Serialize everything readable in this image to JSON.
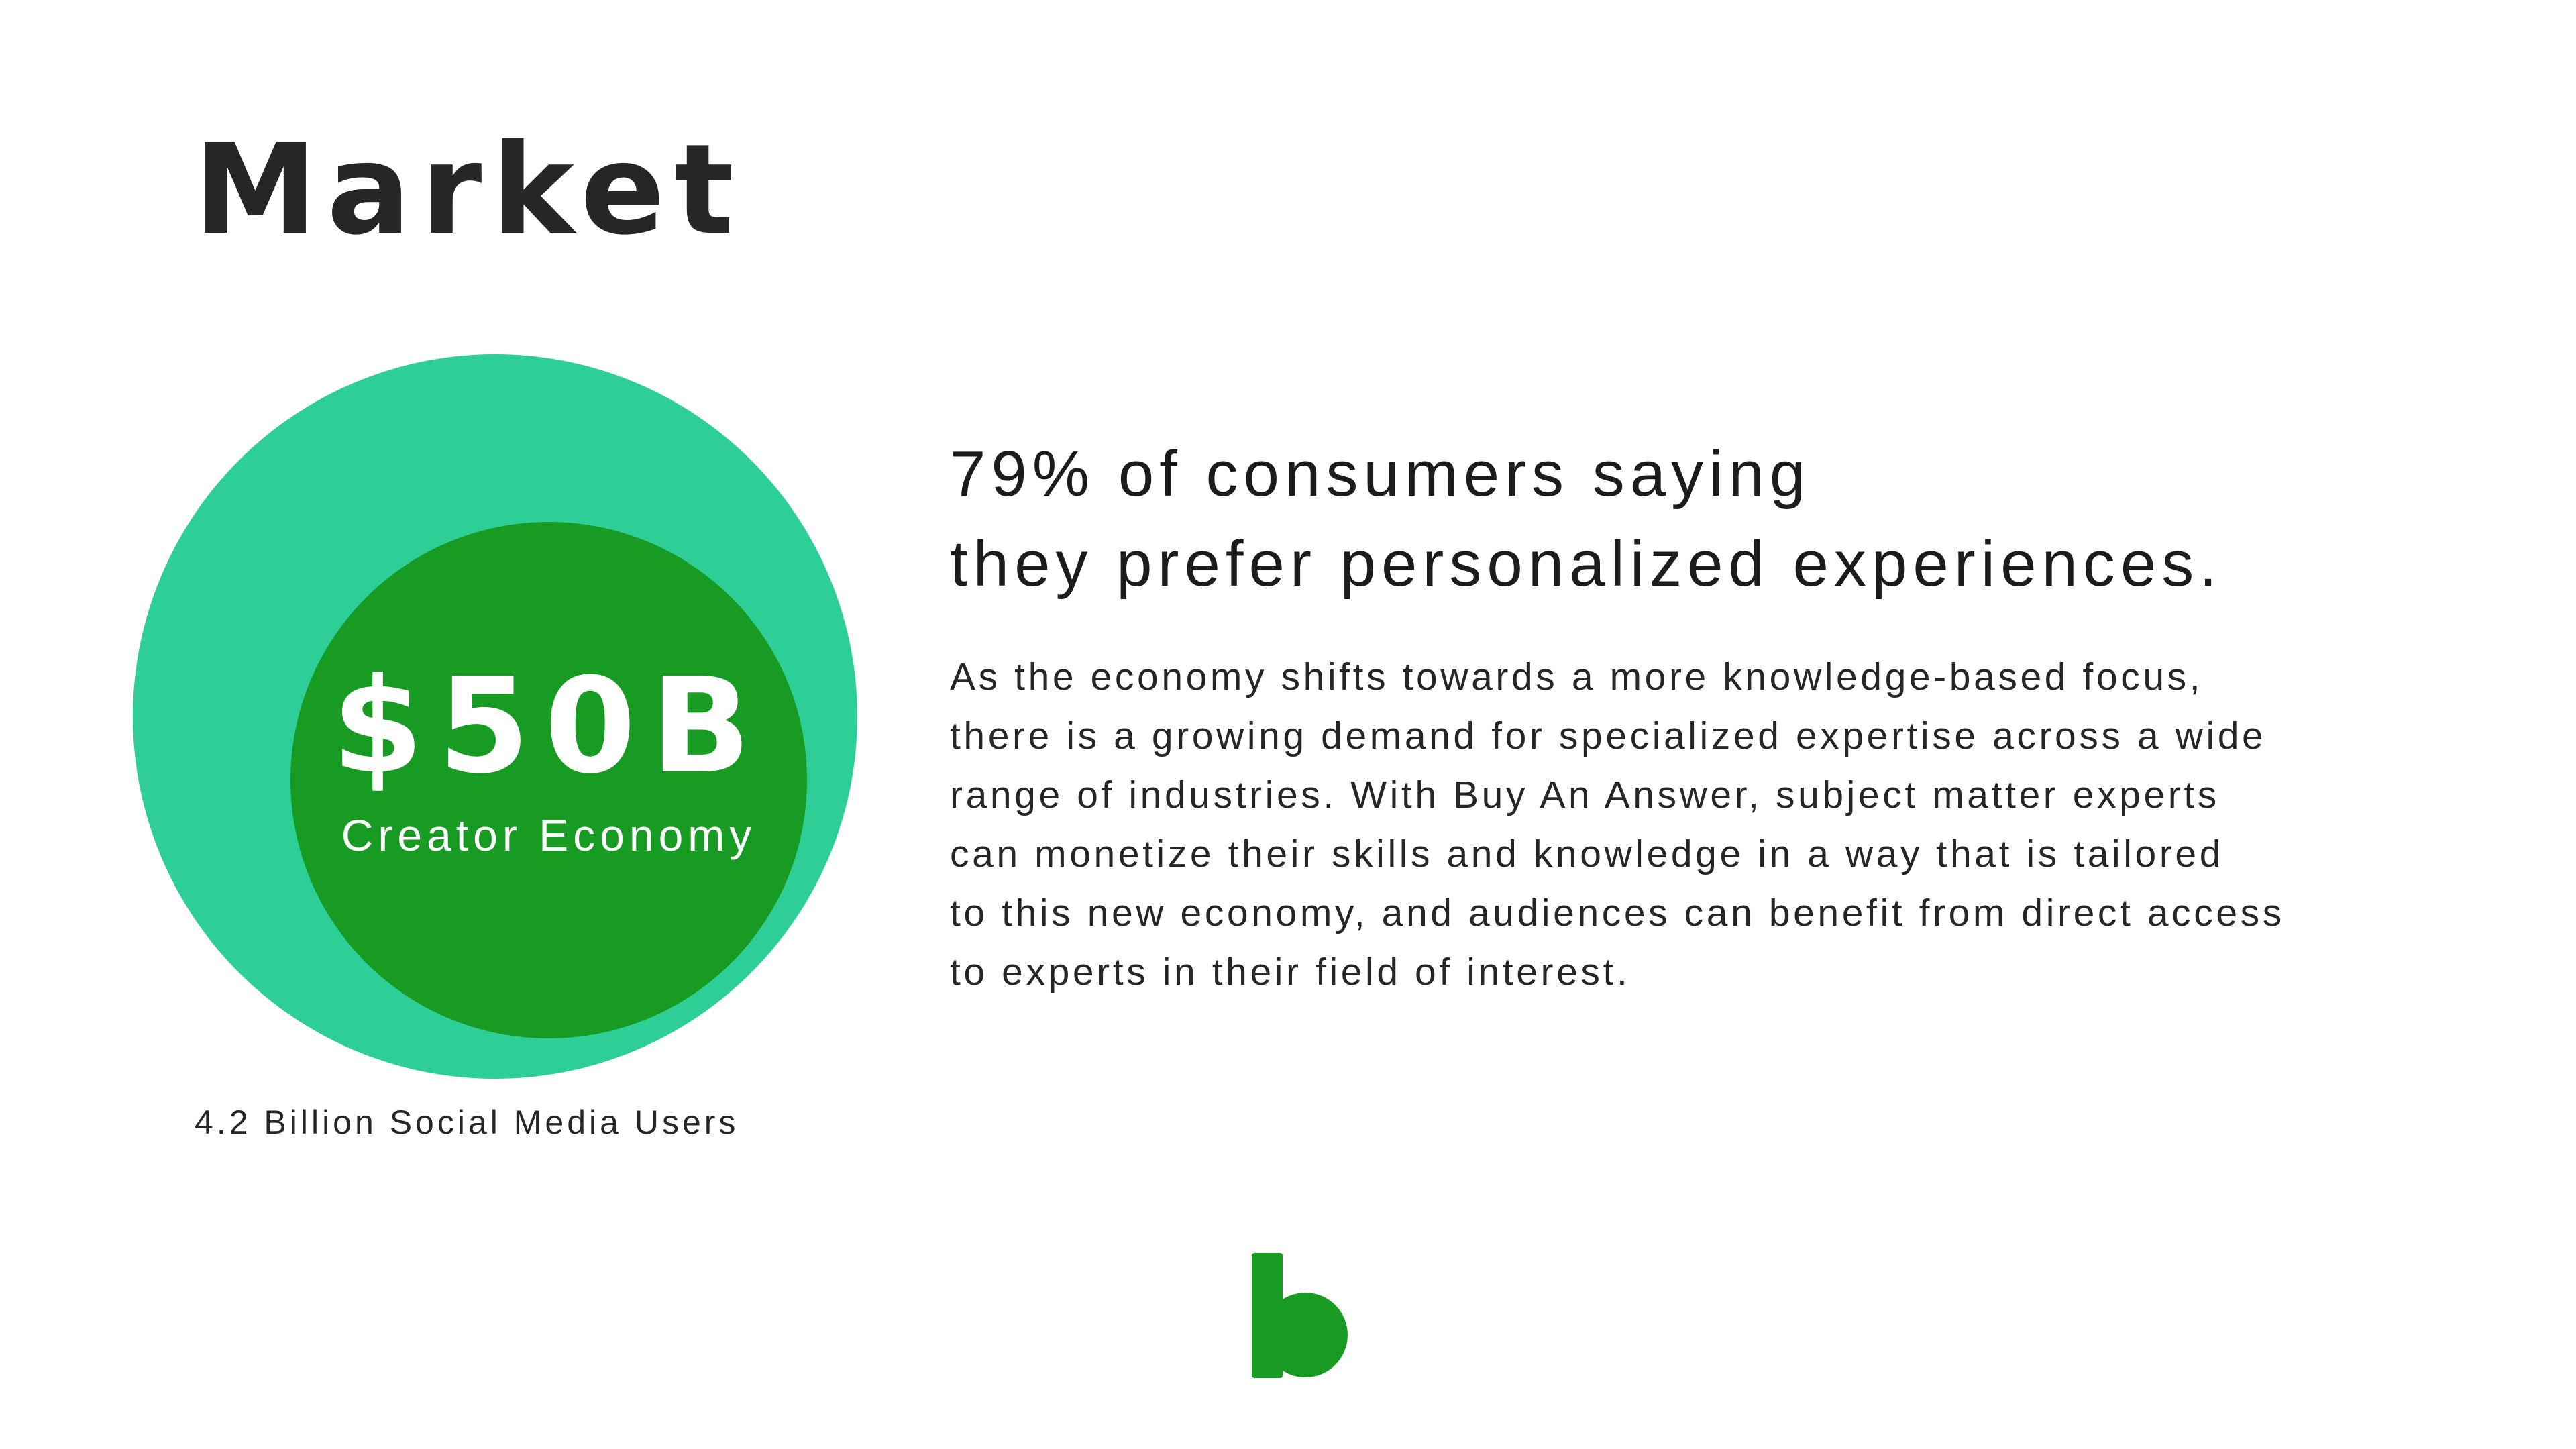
{
  "slide": {
    "title": "Market"
  },
  "market_diagram": {
    "outer_circle": {
      "label": "4.2 Billion Social Media Users",
      "color": "#2dcf96"
    },
    "inner_circle": {
      "value": "$50B",
      "label": "Creator Economy",
      "color": "#189b22"
    }
  },
  "headline": {
    "lines": [
      "79% of consumers saying",
      "they prefer personalized experiences."
    ]
  },
  "body": {
    "lines": [
      "As the economy shifts towards a more knowledge-based focus,",
      "there is a growing demand for specialized expertise across a wide",
      "range of industries. With Buy An Answer, subject matter experts",
      "can monetize their skills and knowledge in a way that is tailored",
      "to this new economy, and audiences can benefit from direct access",
      "to experts in their field of interest."
    ]
  },
  "logo": {
    "icon": "b-logo-icon",
    "color": "#189b22"
  }
}
